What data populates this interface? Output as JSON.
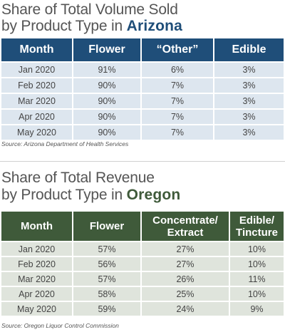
{
  "arizona": {
    "title_line1": "Share of Total Volume Sold",
    "title_line2_prefix": "by Product Type in ",
    "title_line2_state": "Arizona",
    "state_color": "#1f4e79",
    "headers": [
      "Month",
      "Flower",
      "“Other”",
      "Edible"
    ],
    "rows": [
      [
        "Jan 2020",
        "91%",
        "6%",
        "3%"
      ],
      [
        "Feb 2020",
        "90%",
        "7%",
        "3%"
      ],
      [
        "Mar 2020",
        "90%",
        "7%",
        "3%"
      ],
      [
        "Apr 2020",
        "90%",
        "7%",
        "3%"
      ],
      [
        "May 2020",
        "90%",
        "7%",
        "3%"
      ]
    ],
    "source": "Source: Arizona Department of Health Services"
  },
  "oregon": {
    "title_line1": "Share of Total Revenue",
    "title_line2_prefix": "by Product Type in ",
    "title_line2_state": "Oregon",
    "state_color": "#3f5a3a",
    "headers": [
      [
        "Month"
      ],
      [
        "Flower"
      ],
      [
        "Concentrate/",
        "Extract"
      ],
      [
        "Edible/",
        "Tincture"
      ]
    ],
    "rows": [
      [
        "Jan 2020",
        "57%",
        "27%",
        "10%"
      ],
      [
        "Feb 2020",
        "56%",
        "27%",
        "10%"
      ],
      [
        "Mar 2020",
        "57%",
        "26%",
        "11%"
      ],
      [
        "Apr 2020",
        "58%",
        "25%",
        "10%"
      ],
      [
        "May 2020",
        "59%",
        "24%",
        "9%"
      ]
    ],
    "source": "Source: Oregon Liquor Control Commission"
  }
}
